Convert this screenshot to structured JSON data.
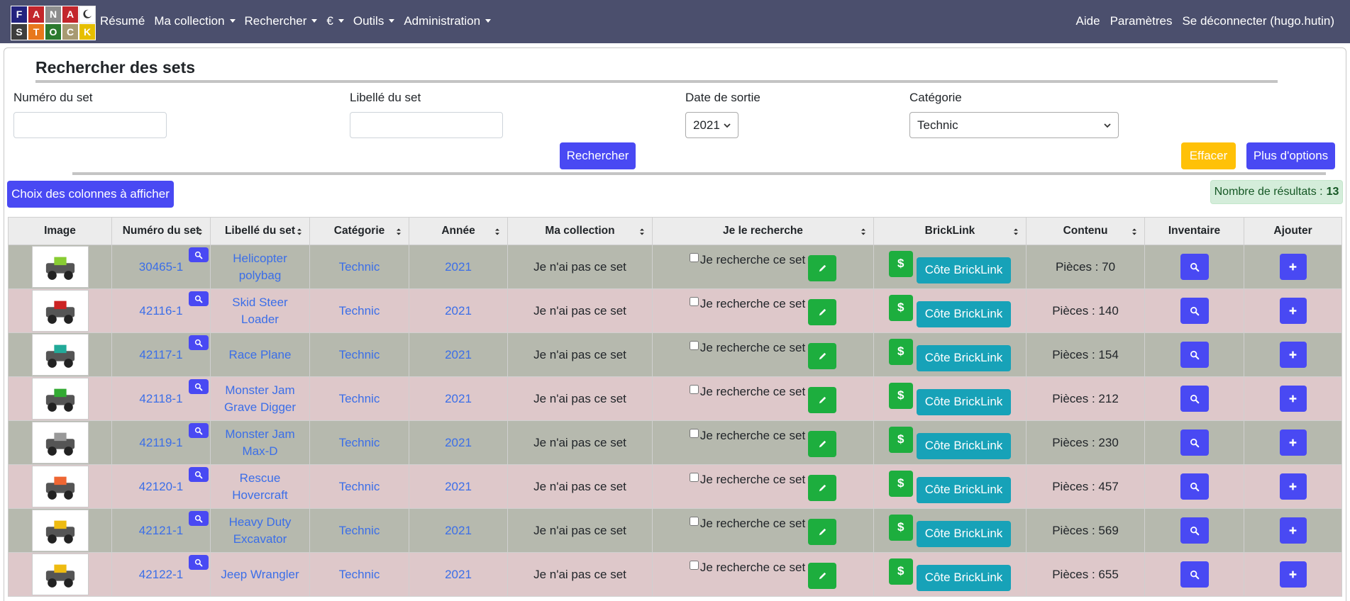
{
  "navbar": {
    "logo": {
      "top": [
        "F",
        "A",
        "N",
        "A"
      ],
      "bottom": [
        "S",
        "T",
        "O",
        "C",
        "K"
      ]
    },
    "menu": [
      {
        "label": "Résumé",
        "dropdown": false
      },
      {
        "label": "Ma collection",
        "dropdown": true
      },
      {
        "label": "Rechercher",
        "dropdown": true
      },
      {
        "label": "€",
        "dropdown": true
      },
      {
        "label": "Outils",
        "dropdown": true
      },
      {
        "label": "Administration",
        "dropdown": true
      }
    ],
    "right": [
      "Aide",
      "Paramètres",
      "Se déconnecter (hugo.hutin)"
    ]
  },
  "header": {
    "title": "Rechercher des sets"
  },
  "form": {
    "set_number_label": "Numéro du set",
    "set_name_label": "Libellé du set",
    "release_date_label": "Date de sortie",
    "release_date_value": "2021",
    "category_label": "Catégorie",
    "category_value": "Technic",
    "search_button": "Rechercher",
    "clear_button": "Effacer",
    "more_options_button": "Plus d'options"
  },
  "columns_button": "Choix des colonnes à afficher",
  "results": {
    "label": "Nombre de résultats :",
    "count": 13
  },
  "table": {
    "headers": [
      "Image",
      "Numéro du set",
      "Libellé du set",
      "Catégorie",
      "Année",
      "Ma collection",
      "Je le recherche",
      "BrickLink",
      "Contenu",
      "Inventaire",
      "Ajouter"
    ],
    "price_icon": "$",
    "rows": [
      {
        "number": "30465-1",
        "name": "Helicopter polybag",
        "category": "Technic",
        "year": "2021",
        "collection": "Je n'ai pas ce set",
        "wanted": "Je recherche ce set",
        "bricklink": "Côte BrickLink",
        "contents": "Pièces : 70"
      },
      {
        "number": "42116-1",
        "name": "Skid Steer Loader",
        "category": "Technic",
        "year": "2021",
        "collection": "Je n'ai pas ce set",
        "wanted": "Je recherche ce set",
        "bricklink": "Côte BrickLink",
        "contents": "Pièces : 140"
      },
      {
        "number": "42117-1",
        "name": "Race Plane",
        "category": "Technic",
        "year": "2021",
        "collection": "Je n'ai pas ce set",
        "wanted": "Je recherche ce set",
        "bricklink": "Côte BrickLink",
        "contents": "Pièces : 154"
      },
      {
        "number": "42118-1",
        "name": "Monster Jam Grave Digger",
        "category": "Technic",
        "year": "2021",
        "collection": "Je n'ai pas ce set",
        "wanted": "Je recherche ce set",
        "bricklink": "Côte BrickLink",
        "contents": "Pièces : 212"
      },
      {
        "number": "42119-1",
        "name": "Monster Jam Max-D",
        "category": "Technic",
        "year": "2021",
        "collection": "Je n'ai pas ce set",
        "wanted": "Je recherche ce set",
        "bricklink": "Côte BrickLink",
        "contents": "Pièces : 230"
      },
      {
        "number": "42120-1",
        "name": "Rescue Hovercraft",
        "category": "Technic",
        "year": "2021",
        "collection": "Je n'ai pas ce set",
        "wanted": "Je recherche ce set",
        "bricklink": "Côte BrickLink",
        "contents": "Pièces : 457"
      },
      {
        "number": "42121-1",
        "name": "Heavy Duty Excavator",
        "category": "Technic",
        "year": "2021",
        "collection": "Je n'ai pas ce set",
        "wanted": "Je recherche ce set",
        "bricklink": "Côte BrickLink",
        "contents": "Pièces : 569"
      },
      {
        "number": "42122-1",
        "name": "Jeep Wrangler",
        "category": "Technic",
        "year": "2021",
        "collection": "Je n'ai pas ce set",
        "wanted": "Je recherche ce set",
        "bricklink": "Côte BrickLink",
        "contents": "Pièces : 655"
      }
    ]
  }
}
